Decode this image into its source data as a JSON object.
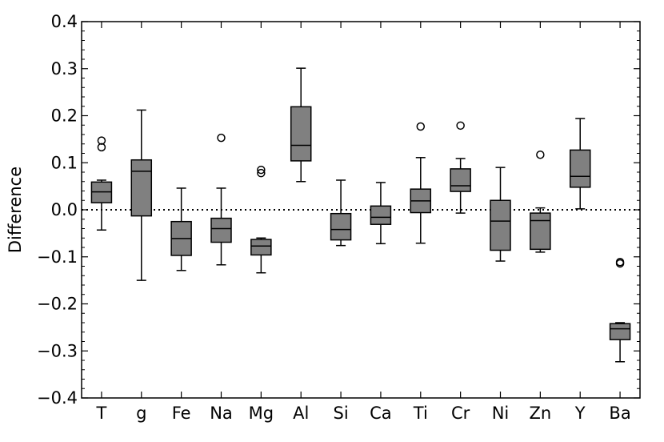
{
  "chart_data": {
    "type": "boxplot",
    "ylabel": "Difference",
    "xlabel": "",
    "ylim": [
      -0.4,
      0.4
    ],
    "yticks": [
      -0.4,
      -0.3,
      -0.2,
      -0.1,
      0.0,
      0.1,
      0.2,
      0.3,
      0.4
    ],
    "ytick_labels": [
      "−0.4",
      "−0.3",
      "−0.2",
      "−0.1",
      "0.0",
      "0.1",
      "0.2",
      "0.3",
      "0.4"
    ],
    "reference_line": 0.0,
    "box_color": "#808080",
    "categories": [
      "T",
      "g",
      "Fe",
      "Na",
      "Mg",
      "Al",
      "Si",
      "Ca",
      "Ti",
      "Cr",
      "Ni",
      "Zn",
      "Y",
      "Ba"
    ],
    "boxes": [
      {
        "label": "T",
        "whislo": -0.043,
        "q1": 0.015,
        "med": 0.038,
        "q3": 0.059,
        "whishi": 0.063,
        "fliers": [
          0.133,
          0.147
        ]
      },
      {
        "label": "g",
        "whislo": -0.15,
        "q1": -0.013,
        "med": 0.082,
        "q3": 0.106,
        "whishi": 0.212,
        "fliers": []
      },
      {
        "label": "Fe",
        "whislo": -0.129,
        "q1": -0.097,
        "med": -0.061,
        "q3": -0.025,
        "whishi": 0.046,
        "fliers": []
      },
      {
        "label": "Na",
        "whislo": -0.117,
        "q1": -0.069,
        "med": -0.04,
        "q3": -0.018,
        "whishi": 0.046,
        "fliers": [
          0.153
        ]
      },
      {
        "label": "Mg",
        "whislo": -0.134,
        "q1": -0.096,
        "med": -0.077,
        "q3": -0.063,
        "whishi": -0.06,
        "fliers": [
          0.078,
          0.085
        ]
      },
      {
        "label": "Al",
        "whislo": 0.06,
        "q1": 0.104,
        "med": 0.137,
        "q3": 0.219,
        "whishi": 0.301,
        "fliers": []
      },
      {
        "label": "Si",
        "whislo": -0.076,
        "q1": -0.064,
        "med": -0.042,
        "q3": -0.008,
        "whishi": 0.063,
        "fliers": []
      },
      {
        "label": "Ca",
        "whislo": -0.072,
        "q1": -0.031,
        "med": -0.016,
        "q3": 0.008,
        "whishi": 0.058,
        "fliers": []
      },
      {
        "label": "Ti",
        "whislo": -0.071,
        "q1": -0.006,
        "med": 0.019,
        "q3": 0.044,
        "whishi": 0.111,
        "fliers": [
          0.177
        ]
      },
      {
        "label": "Cr",
        "whislo": -0.007,
        "q1": 0.039,
        "med": 0.051,
        "q3": 0.087,
        "whishi": 0.109,
        "fliers": [
          0.179
        ]
      },
      {
        "label": "Ni",
        "whislo": -0.109,
        "q1": -0.086,
        "med": -0.024,
        "q3": 0.02,
        "whishi": 0.09,
        "fliers": []
      },
      {
        "label": "Zn",
        "whislo": -0.09,
        "q1": -0.084,
        "med": -0.023,
        "q3": -0.007,
        "whishi": 0.004,
        "fliers": [
          0.117
        ]
      },
      {
        "label": "Y",
        "whislo": 0.002,
        "q1": 0.048,
        "med": 0.071,
        "q3": 0.127,
        "whishi": 0.194,
        "fliers": []
      },
      {
        "label": "Ba",
        "whislo": -0.323,
        "q1": -0.276,
        "med": -0.253,
        "q3": -0.242,
        "whishi": -0.24,
        "fliers": [
          -0.111,
          -0.114
        ]
      }
    ]
  }
}
